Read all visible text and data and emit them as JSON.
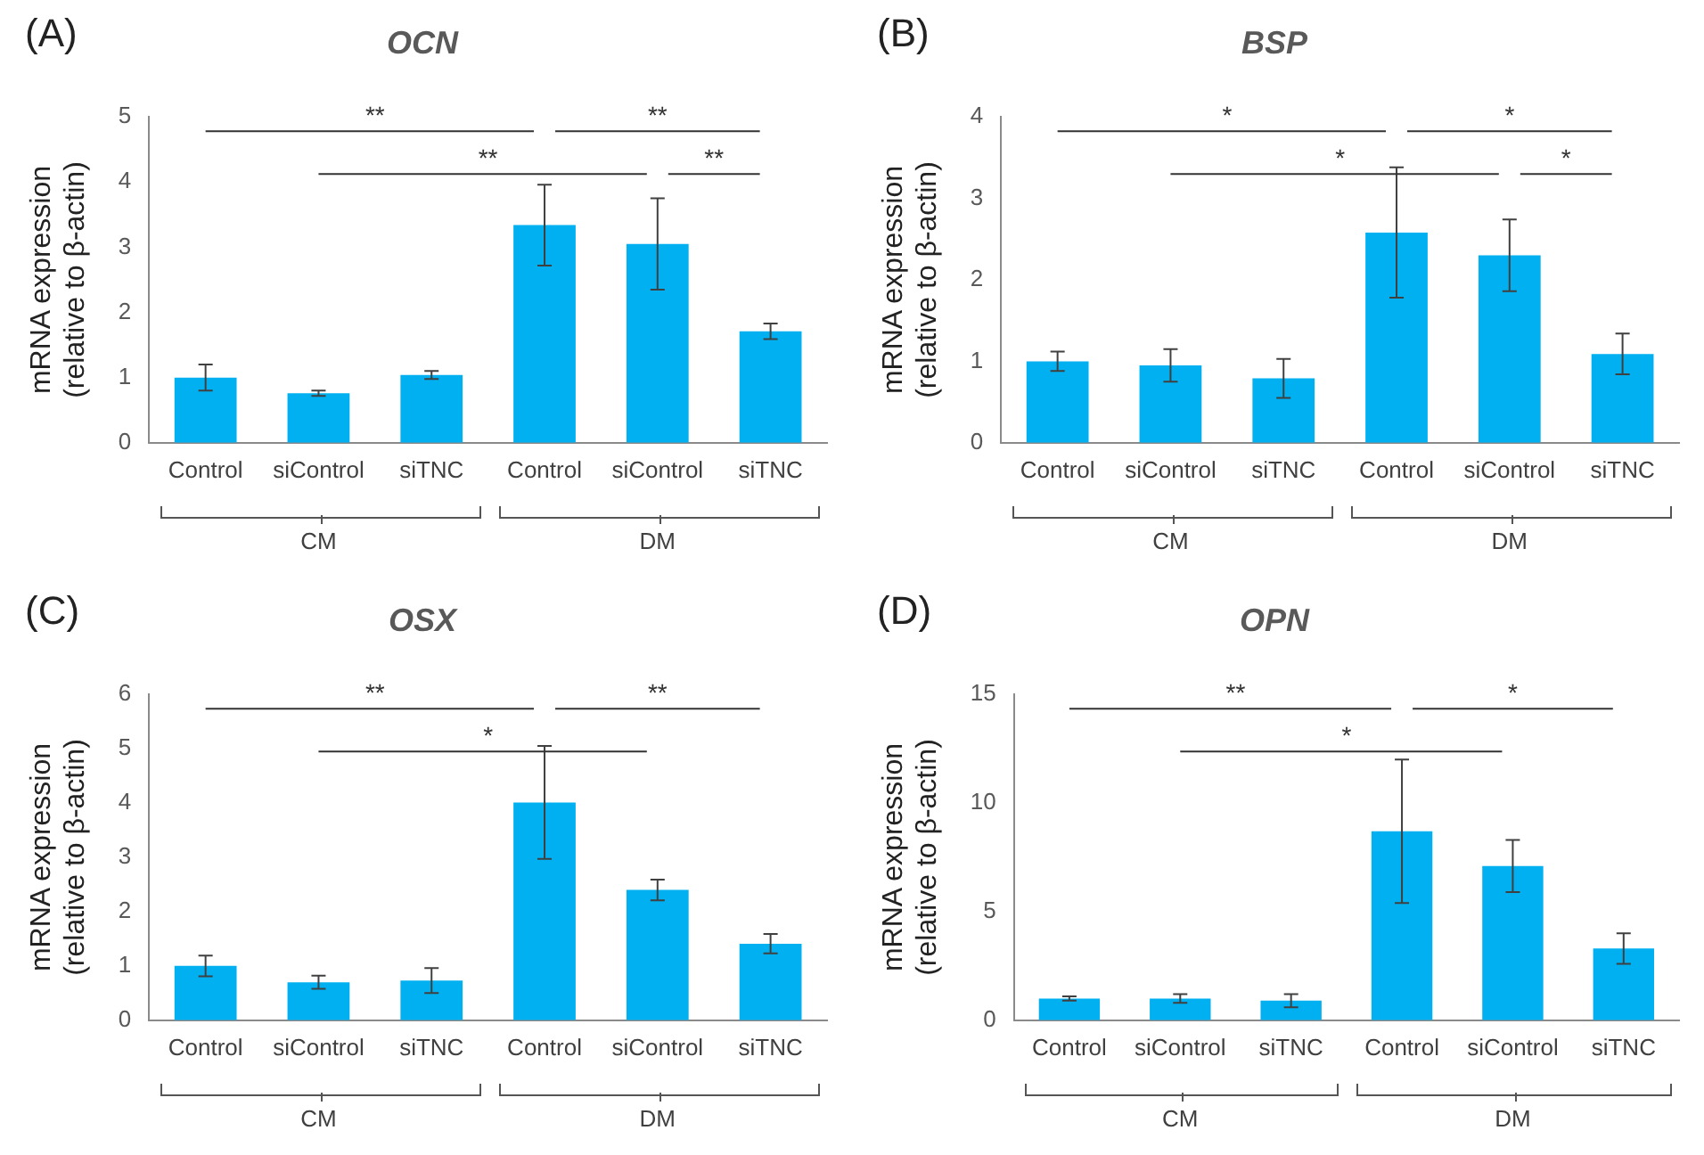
{
  "chart_data": [
    {
      "type": "bar",
      "title": "OCN",
      "ylabel": "mRNA expression\n(relative to β-actin)",
      "categories": [
        "Control",
        "siControl",
        "siTNC",
        "Control",
        "siControl",
        "siTNC"
      ],
      "values": [
        1.0,
        0.76,
        1.04,
        3.34,
        3.05,
        1.71
      ],
      "errors": [
        0.2,
        0.04,
        0.06,
        0.62,
        0.7,
        0.12
      ],
      "color": "#00b0f0",
      "ylim": [
        0,
        5
      ],
      "yticks": [
        0,
        1,
        2,
        3,
        4,
        5
      ],
      "grid": false,
      "legend": false,
      "annotations": [
        "(A)",
        "**",
        "**",
        "**",
        "**",
        "CM",
        "DM"
      ]
    },
    {
      "type": "bar",
      "title": "BSP",
      "ylabel": "mRNA expression\n(relative to β-actin)",
      "categories": [
        "Control",
        "siControl",
        "siTNC",
        "Control",
        "siControl",
        "siTNC"
      ],
      "values": [
        1.0,
        0.95,
        0.79,
        2.58,
        2.3,
        1.09
      ],
      "errors": [
        0.12,
        0.2,
        0.24,
        0.8,
        0.44,
        0.25
      ],
      "color": "#00b0f0",
      "ylim": [
        0,
        4
      ],
      "yticks": [
        0,
        1,
        2,
        3,
        4
      ],
      "grid": false,
      "legend": false,
      "annotations": [
        "(B)",
        "*",
        "*",
        "*",
        "*",
        "CM",
        "DM"
      ]
    },
    {
      "type": "bar",
      "title": "OSX",
      "ylabel": "mRNA expression\n(relative to β-actin)",
      "categories": [
        "Control",
        "siControl",
        "siTNC",
        "Control",
        "siControl",
        "siTNC"
      ],
      "values": [
        1.0,
        0.7,
        0.73,
        4.01,
        2.4,
        1.41
      ],
      "errors": [
        0.19,
        0.12,
        0.23,
        1.04,
        0.19,
        0.18
      ],
      "color": "#00b0f0",
      "ylim": [
        0,
        6
      ],
      "yticks": [
        0,
        1,
        2,
        3,
        4,
        5,
        6
      ],
      "grid": false,
      "legend": false,
      "annotations": [
        "(C)",
        "**",
        "**",
        "*",
        "CM",
        "DM"
      ]
    },
    {
      "type": "bar",
      "title": "OPN",
      "ylabel": "mRNA expression\n(relative to β-actin)",
      "categories": [
        "Control",
        "siControl",
        "siTNC",
        "Control",
        "siControl",
        "siTNC"
      ],
      "values": [
        1.0,
        1.0,
        0.9,
        8.7,
        7.1,
        3.3
      ],
      "errors": [
        0.1,
        0.2,
        0.3,
        3.3,
        1.2,
        0.7
      ],
      "color": "#00b0f0",
      "ylim": [
        0,
        15
      ],
      "yticks": [
        0,
        5,
        10,
        15
      ],
      "grid": false,
      "legend": false,
      "annotations": [
        "(D)",
        "**",
        "*",
        "*",
        "CM",
        "DM"
      ]
    }
  ]
}
